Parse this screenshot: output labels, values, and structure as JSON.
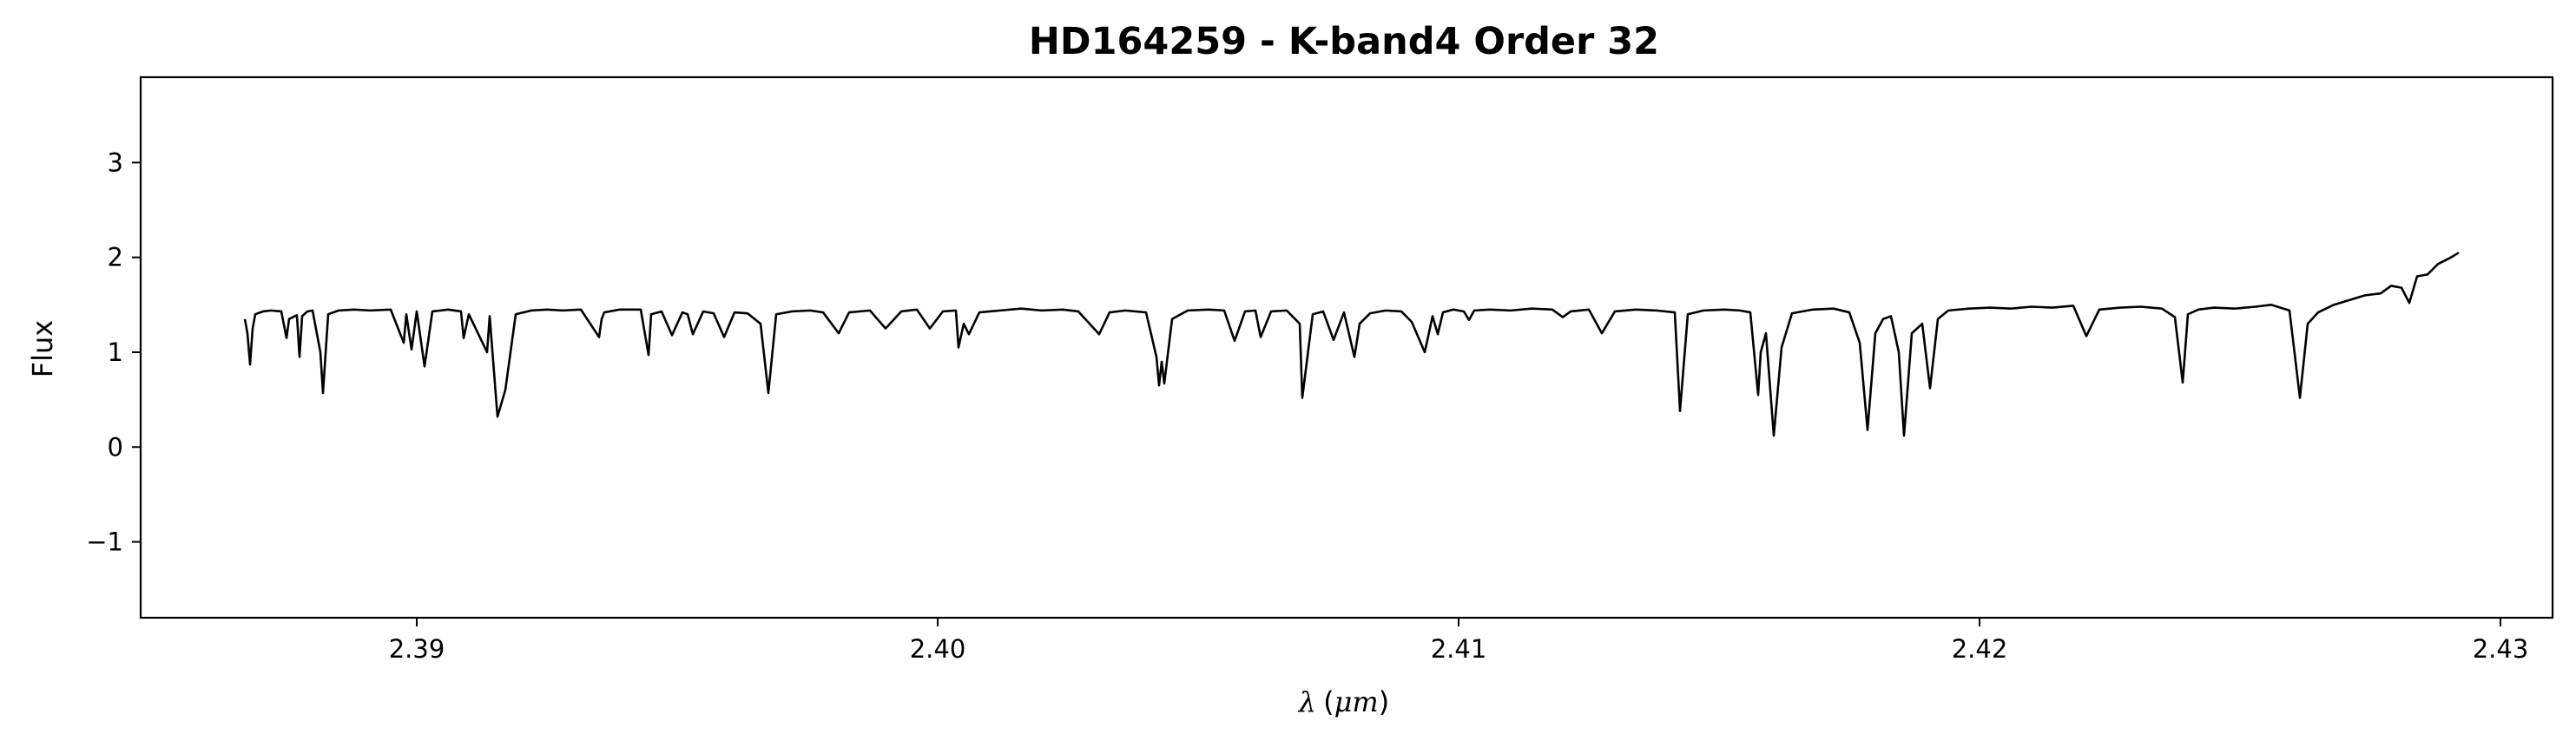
{
  "chart_data": {
    "type": "line",
    "title": "HD164259 - K-band4 Order 32",
    "xlabel": {
      "symbol": "λ",
      "unit_open": "(",
      "unit": "μm",
      "unit_close": ")"
    },
    "ylabel": "Flux",
    "xlim": [
      2.3847,
      2.431
    ],
    "ylim": [
      -1.8,
      3.9
    ],
    "x_ticks": [
      {
        "value": 2.39,
        "label": "2.39"
      },
      {
        "value": 2.4,
        "label": "2.40"
      },
      {
        "value": 2.41,
        "label": "2.41"
      },
      {
        "value": 2.42,
        "label": "2.42"
      },
      {
        "value": 2.43,
        "label": "2.43"
      }
    ],
    "y_ticks": [
      {
        "value": -1,
        "label": "−1"
      },
      {
        "value": 0,
        "label": "0"
      },
      {
        "value": 1,
        "label": "1"
      },
      {
        "value": 2,
        "label": "2"
      },
      {
        "value": 3,
        "label": "3"
      }
    ],
    "grid": false,
    "series": [
      {
        "color": "#000000",
        "points": [
          [
            2.3867,
            1.35
          ],
          [
            2.38675,
            1.2
          ],
          [
            2.3868,
            0.87
          ],
          [
            2.38685,
            1.25
          ],
          [
            2.3869,
            1.4
          ],
          [
            2.38705,
            1.43
          ],
          [
            2.3872,
            1.44
          ],
          [
            2.3874,
            1.43
          ],
          [
            2.3875,
            1.15
          ],
          [
            2.38755,
            1.35
          ],
          [
            2.3877,
            1.39
          ],
          [
            2.38775,
            0.95
          ],
          [
            2.3878,
            1.38
          ],
          [
            2.3879,
            1.43
          ],
          [
            2.388,
            1.44
          ],
          [
            2.38815,
            1.0
          ],
          [
            2.3882,
            0.57
          ],
          [
            2.3883,
            1.4
          ],
          [
            2.3885,
            1.44
          ],
          [
            2.3888,
            1.45
          ],
          [
            2.3891,
            1.44
          ],
          [
            2.3895,
            1.45
          ],
          [
            2.38975,
            1.1
          ],
          [
            2.3898,
            1.4
          ],
          [
            2.3899,
            1.03
          ],
          [
            2.39,
            1.43
          ],
          [
            2.39015,
            0.85
          ],
          [
            2.3903,
            1.43
          ],
          [
            2.3906,
            1.45
          ],
          [
            2.39085,
            1.43
          ],
          [
            2.3909,
            1.15
          ],
          [
            2.391,
            1.4
          ],
          [
            2.39135,
            1.0
          ],
          [
            2.3914,
            1.38
          ],
          [
            2.39155,
            0.32
          ],
          [
            2.3917,
            0.6
          ],
          [
            2.3919,
            1.4
          ],
          [
            2.3922,
            1.44
          ],
          [
            2.3925,
            1.45
          ],
          [
            2.3928,
            1.44
          ],
          [
            2.39315,
            1.45
          ],
          [
            2.3935,
            1.16
          ],
          [
            2.39355,
            1.35
          ],
          [
            2.3936,
            1.42
          ],
          [
            2.3939,
            1.45
          ],
          [
            2.3943,
            1.45
          ],
          [
            2.39445,
            0.97
          ],
          [
            2.3945,
            1.4
          ],
          [
            2.3947,
            1.43
          ],
          [
            2.3949,
            1.18
          ],
          [
            2.3951,
            1.42
          ],
          [
            2.3952,
            1.4
          ],
          [
            2.3953,
            1.19
          ],
          [
            2.3955,
            1.43
          ],
          [
            2.3957,
            1.41
          ],
          [
            2.3959,
            1.16
          ],
          [
            2.3961,
            1.42
          ],
          [
            2.39635,
            1.41
          ],
          [
            2.3966,
            1.3
          ],
          [
            2.39675,
            0.57
          ],
          [
            2.3969,
            1.4
          ],
          [
            2.3972,
            1.43
          ],
          [
            2.39755,
            1.44
          ],
          [
            2.3978,
            1.42
          ],
          [
            2.3981,
            1.2
          ],
          [
            2.3983,
            1.42
          ],
          [
            2.3987,
            1.44
          ],
          [
            2.399,
            1.25
          ],
          [
            2.3993,
            1.43
          ],
          [
            2.3996,
            1.45
          ],
          [
            2.39985,
            1.25
          ],
          [
            2.4001,
            1.43
          ],
          [
            2.40035,
            1.44
          ],
          [
            2.4004,
            1.05
          ],
          [
            2.4005,
            1.3
          ],
          [
            2.4006,
            1.19
          ],
          [
            2.4008,
            1.42
          ],
          [
            2.4012,
            1.44
          ],
          [
            2.4016,
            1.46
          ],
          [
            2.402,
            1.44
          ],
          [
            2.4024,
            1.45
          ],
          [
            2.4027,
            1.43
          ],
          [
            2.4031,
            1.19
          ],
          [
            2.4033,
            1.42
          ],
          [
            2.4036,
            1.44
          ],
          [
            2.404,
            1.42
          ],
          [
            2.4042,
            0.95
          ],
          [
            2.40425,
            0.65
          ],
          [
            2.4043,
            0.9
          ],
          [
            2.40435,
            0.67
          ],
          [
            2.4045,
            1.35
          ],
          [
            2.4048,
            1.44
          ],
          [
            2.4052,
            1.45
          ],
          [
            2.4055,
            1.44
          ],
          [
            2.4057,
            1.12
          ],
          [
            2.4059,
            1.43
          ],
          [
            2.4061,
            1.44
          ],
          [
            2.4062,
            1.16
          ],
          [
            2.4064,
            1.43
          ],
          [
            2.4067,
            1.44
          ],
          [
            2.40695,
            1.3
          ],
          [
            2.407,
            0.52
          ],
          [
            2.4072,
            1.4
          ],
          [
            2.4074,
            1.43
          ],
          [
            2.4076,
            1.13
          ],
          [
            2.4078,
            1.42
          ],
          [
            2.408,
            0.95
          ],
          [
            2.4081,
            1.3
          ],
          [
            2.4083,
            1.41
          ],
          [
            2.4086,
            1.44
          ],
          [
            2.4089,
            1.43
          ],
          [
            2.4091,
            1.32
          ],
          [
            2.40935,
            1.0
          ],
          [
            2.4095,
            1.38
          ],
          [
            2.4096,
            1.19
          ],
          [
            2.4097,
            1.42
          ],
          [
            2.4099,
            1.45
          ],
          [
            2.4101,
            1.43
          ],
          [
            2.4102,
            1.34
          ],
          [
            2.4103,
            1.44
          ],
          [
            2.4106,
            1.45
          ],
          [
            2.411,
            1.44
          ],
          [
            2.4114,
            1.46
          ],
          [
            2.4118,
            1.45
          ],
          [
            2.412,
            1.37
          ],
          [
            2.41215,
            1.43
          ],
          [
            2.4125,
            1.45
          ],
          [
            2.41275,
            1.2
          ],
          [
            2.413,
            1.43
          ],
          [
            2.4134,
            1.45
          ],
          [
            2.4138,
            1.44
          ],
          [
            2.41415,
            1.42
          ],
          [
            2.41425,
            0.38
          ],
          [
            2.4144,
            1.4
          ],
          [
            2.4147,
            1.44
          ],
          [
            2.4151,
            1.45
          ],
          [
            2.4154,
            1.44
          ],
          [
            2.4156,
            1.42
          ],
          [
            2.41575,
            0.55
          ],
          [
            2.4158,
            1.0
          ],
          [
            2.4159,
            1.2
          ],
          [
            2.41605,
            0.12
          ],
          [
            2.4162,
            1.05
          ],
          [
            2.4164,
            1.41
          ],
          [
            2.4168,
            1.45
          ],
          [
            2.4172,
            1.46
          ],
          [
            2.4175,
            1.42
          ],
          [
            2.4177,
            1.1
          ],
          [
            2.41785,
            0.18
          ],
          [
            2.418,
            1.2
          ],
          [
            2.41815,
            1.35
          ],
          [
            2.4183,
            1.38
          ],
          [
            2.41845,
            1.0
          ],
          [
            2.41855,
            0.12
          ],
          [
            2.4187,
            1.2
          ],
          [
            2.4189,
            1.3
          ],
          [
            2.41905,
            0.62
          ],
          [
            2.4192,
            1.35
          ],
          [
            2.4194,
            1.44
          ],
          [
            2.4198,
            1.46
          ],
          [
            2.4202,
            1.47
          ],
          [
            2.4206,
            1.46
          ],
          [
            2.421,
            1.48
          ],
          [
            2.4214,
            1.47
          ],
          [
            2.4218,
            1.49
          ],
          [
            2.42205,
            1.17
          ],
          [
            2.4223,
            1.45
          ],
          [
            2.4227,
            1.47
          ],
          [
            2.4231,
            1.48
          ],
          [
            2.4235,
            1.46
          ],
          [
            2.42375,
            1.37
          ],
          [
            2.4239,
            0.68
          ],
          [
            2.424,
            1.4
          ],
          [
            2.4242,
            1.45
          ],
          [
            2.4245,
            1.47
          ],
          [
            2.4249,
            1.46
          ],
          [
            2.4253,
            1.48
          ],
          [
            2.4256,
            1.5
          ],
          [
            2.42595,
            1.44
          ],
          [
            2.42615,
            0.52
          ],
          [
            2.4263,
            1.3
          ],
          [
            2.4265,
            1.42
          ],
          [
            2.4268,
            1.5
          ],
          [
            2.4271,
            1.55
          ],
          [
            2.4274,
            1.6
          ],
          [
            2.4277,
            1.62
          ],
          [
            2.4279,
            1.7
          ],
          [
            2.4281,
            1.68
          ],
          [
            2.42825,
            1.52
          ],
          [
            2.4284,
            1.8
          ],
          [
            2.4286,
            1.82
          ],
          [
            2.4288,
            1.93
          ],
          [
            2.42905,
            2.0
          ],
          [
            2.4292,
            2.05
          ]
        ]
      }
    ]
  }
}
